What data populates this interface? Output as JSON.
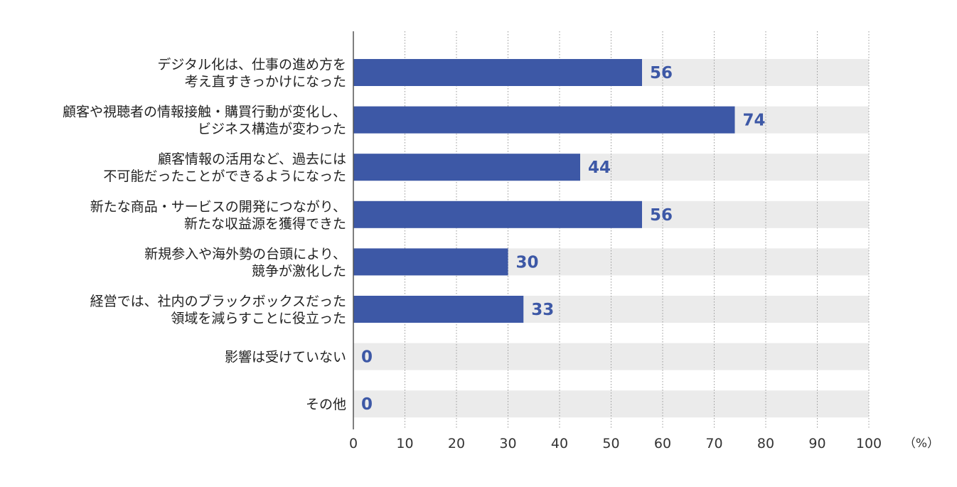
{
  "chart_data": {
    "type": "bar",
    "orientation": "horizontal",
    "categories": [
      [
        "デジタル化は、仕事の進め方を",
        "考え直すきっかけになった"
      ],
      [
        "顧客や視聴者の情報接触・購買行動が変化し、",
        "ビジネス構造が変わった"
      ],
      [
        "顧客情報の活用など、過去には",
        "不可能だったことができるようになった"
      ],
      [
        "新たな商品・サービスの開発につながり、",
        "新たな収益源を獲得できた"
      ],
      [
        "新規参入や海外勢の台頭により、",
        "競争が激化した"
      ],
      [
        "経営では、社内のブラックボックスだった",
        "領域を減らすことに役立った"
      ],
      [
        "影響は受けていない"
      ],
      [
        "その他"
      ]
    ],
    "values": [
      56,
      74,
      44,
      56,
      30,
      33,
      0,
      0
    ],
    "xlim": [
      0,
      100
    ],
    "xticks": [
      0,
      10,
      20,
      30,
      40,
      50,
      60,
      70,
      80,
      90,
      100
    ],
    "unit": "（%）",
    "grid": "vertical-dotted",
    "colors": {
      "bar": "#3d58a6",
      "track": "#ebebeb",
      "value_text": "#3d58a6",
      "axis": "#555555",
      "grid": "#999999"
    }
  }
}
